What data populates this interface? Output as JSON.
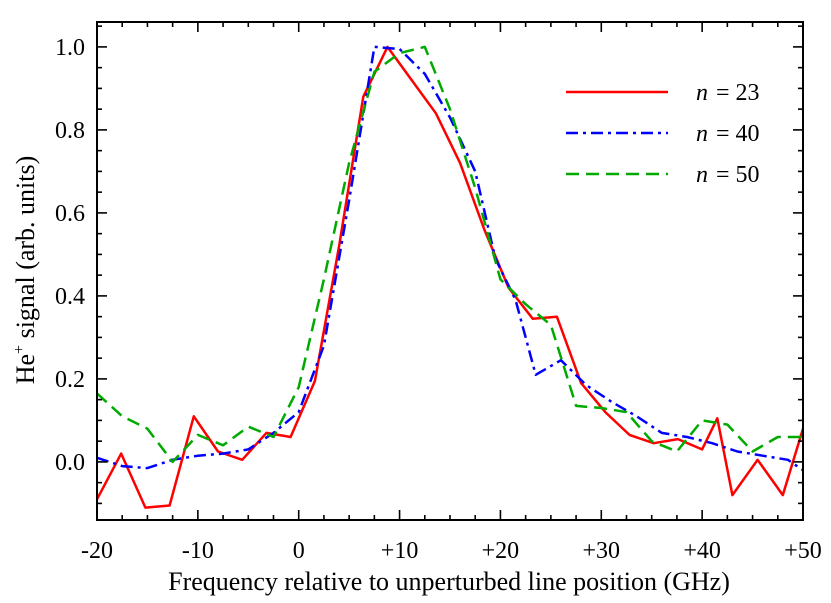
{
  "chart_data": {
    "type": "line",
    "xlabel": "Frequency relative to unperturbed line position (GHz)",
    "ylabel_main": "He",
    "ylabel_sup": "+",
    "ylabel_rest": " signal (arb. units)",
    "xlim": [
      -20,
      50
    ],
    "ylim": [
      -0.14,
      1.06
    ],
    "x_ticks": [
      -20,
      -10,
      0,
      10,
      20,
      30,
      40,
      50
    ],
    "x_tick_labels": [
      "-20",
      "-10",
      "0",
      "+10",
      "+20",
      "+30",
      "+40",
      "+50"
    ],
    "y_ticks": [
      0.0,
      0.2,
      0.4,
      0.6,
      0.8,
      1.0
    ],
    "y_tick_labels": [
      "0.0",
      "0.2",
      "0.4",
      "0.6",
      "0.8",
      "1.0"
    ],
    "grid": false,
    "legend_position": "top-right",
    "series": [
      {
        "name": "n = 23",
        "legend_var": "n",
        "legend_value": "= 23",
        "color": "#ff0000",
        "dash": "solid",
        "points": [
          [
            -20,
            -0.09
          ],
          [
            -17.6,
            0.02
          ],
          [
            -15.2,
            -0.11
          ],
          [
            -12.8,
            -0.105
          ],
          [
            -10.4,
            0.11
          ],
          [
            -8,
            0.025
          ],
          [
            -5.6,
            0.005
          ],
          [
            -3.2,
            0.07
          ],
          [
            -0.8,
            0.06
          ],
          [
            1.6,
            0.195
          ],
          [
            4,
            0.52
          ],
          [
            6.4,
            0.88
          ],
          [
            8.8,
            1.0
          ],
          [
            11.2,
            0.92
          ],
          [
            13.6,
            0.84
          ],
          [
            16,
            0.72
          ],
          [
            18.4,
            0.56
          ],
          [
            20.8,
            0.42
          ],
          [
            23.2,
            0.345
          ],
          [
            25.6,
            0.35
          ],
          [
            28,
            0.19
          ],
          [
            30.4,
            0.12
          ],
          [
            32.8,
            0.065
          ],
          [
            35.2,
            0.045
          ],
          [
            37.6,
            0.055
          ],
          [
            40,
            0.03
          ],
          [
            41.5,
            0.105
          ],
          [
            43,
            -0.08
          ],
          [
            45.5,
            0.005
          ],
          [
            48,
            -0.08
          ],
          [
            50,
            0.08
          ]
        ]
      },
      {
        "name": "n = 40",
        "legend_var": "n",
        "legend_value": "= 40",
        "color": "#0000ff",
        "dash": "dashdot",
        "points": [
          [
            -20,
            0.01
          ],
          [
            -17.5,
            -0.01
          ],
          [
            -15,
            -0.015
          ],
          [
            -12.5,
            0.005
          ],
          [
            -10,
            0.015
          ],
          [
            -7.5,
            0.02
          ],
          [
            -5,
            0.03
          ],
          [
            -2.5,
            0.07
          ],
          [
            0,
            0.12
          ],
          [
            2.5,
            0.28
          ],
          [
            5,
            0.63
          ],
          [
            7.5,
            1.0
          ],
          [
            10,
            0.995
          ],
          [
            12.5,
            0.935
          ],
          [
            15,
            0.83
          ],
          [
            17.5,
            0.7
          ],
          [
            19.5,
            0.49
          ],
          [
            21.5,
            0.39
          ],
          [
            23.5,
            0.21
          ],
          [
            26,
            0.245
          ],
          [
            28.5,
            0.185
          ],
          [
            31,
            0.145
          ],
          [
            33.5,
            0.11
          ],
          [
            36,
            0.07
          ],
          [
            38.5,
            0.06
          ],
          [
            41,
            0.045
          ],
          [
            43.5,
            0.025
          ],
          [
            46,
            0.015
          ],
          [
            48.5,
            0.005
          ],
          [
            50,
            -0.02
          ]
        ]
      },
      {
        "name": "n = 50",
        "legend_var": "n",
        "legend_value": "= 50",
        "color": "#00aa00",
        "dash": "dashed",
        "points": [
          [
            -20,
            0.165
          ],
          [
            -17.5,
            0.11
          ],
          [
            -15,
            0.08
          ],
          [
            -12.5,
            0.0
          ],
          [
            -10,
            0.065
          ],
          [
            -7.5,
            0.04
          ],
          [
            -5,
            0.085
          ],
          [
            -2.5,
            0.06
          ],
          [
            0,
            0.18
          ],
          [
            2.5,
            0.44
          ],
          [
            5,
            0.72
          ],
          [
            7.5,
            0.94
          ],
          [
            10,
            0.985
          ],
          [
            12.5,
            1.0
          ],
          [
            15,
            0.85
          ],
          [
            17.5,
            0.66
          ],
          [
            20,
            0.44
          ],
          [
            22.5,
            0.38
          ],
          [
            25,
            0.33
          ],
          [
            27.5,
            0.135
          ],
          [
            30,
            0.13
          ],
          [
            32.5,
            0.12
          ],
          [
            35,
            0.05
          ],
          [
            37.5,
            0.025
          ],
          [
            40,
            0.1
          ],
          [
            42.5,
            0.09
          ],
          [
            45,
            0.025
          ],
          [
            47.5,
            0.06
          ],
          [
            50,
            0.06
          ]
        ]
      }
    ]
  }
}
